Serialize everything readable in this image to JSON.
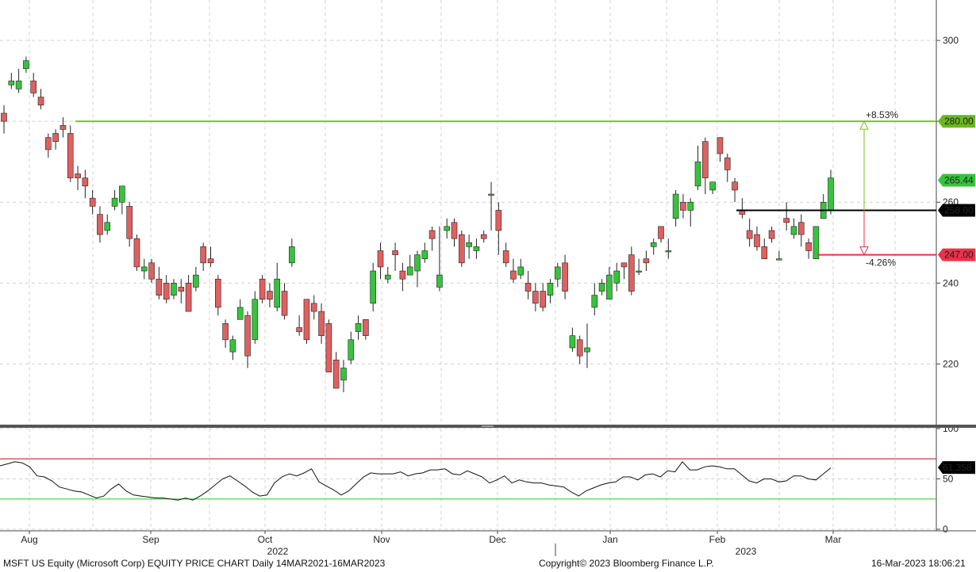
{
  "footer": {
    "left": "MSFT US Equity (Microsoft Corp) EQUITY PRICE CHART  Daily 14MAR2021-16MAR2023",
    "center": "Copyright© 2023 Bloomberg Finance L.P.",
    "right": "16-Mar-2023 18:06:21"
  },
  "chart_data": [
    {
      "type": "candlestick",
      "title": "",
      "ylim": [
        205,
        310
      ],
      "yticks": [
        220,
        240,
        260,
        280,
        300
      ],
      "x_month_labels": [
        "Aug",
        "Sep",
        "Oct",
        "Nov",
        "Dec",
        "Jan",
        "Feb",
        "Mar"
      ],
      "x_year_labels": [
        "2022",
        "2023"
      ],
      "colors": {
        "up": "#35c43b",
        "down": "#e06060",
        "level_280": "#7bc41e",
        "level_258": "#000000",
        "level_247": "#e8334a"
      },
      "horizontal_levels": [
        {
          "value": 280.0,
          "label": "280.00"
        },
        {
          "value": 258.0,
          "label": "258.00"
        },
        {
          "value": 247.0,
          "label": "247.00"
        }
      ],
      "last_price": {
        "value": 265.44,
        "label": "265.44"
      },
      "annotations": [
        {
          "text": "+8.53%",
          "from": 258.0,
          "to": 280.0
        },
        {
          "text": "-4.26%",
          "from": 258.0,
          "to": 247.0
        }
      ],
      "series": [
        {
          "values": [
            [
              282,
              280,
              284,
              277
            ],
            [
              289,
              290,
              292,
              288
            ],
            [
              288,
              290,
              293,
              287
            ],
            [
              293,
              295,
              296,
              292
            ],
            [
              290,
              287,
              292,
              286
            ],
            [
              286,
              284,
              288,
              283
            ],
            [
              276,
              273,
              277,
              271
            ],
            [
              277,
              275,
              278,
              273
            ],
            [
              279,
              278,
              281,
              276
            ],
            [
              277,
              266,
              279,
              265
            ],
            [
              267,
              266,
              269,
              263
            ],
            [
              266,
              264,
              268,
              261
            ],
            [
              261,
              259,
              263,
              257
            ],
            [
              257,
              252,
              259,
              250
            ],
            [
              253,
              255,
              257,
              252
            ],
            [
              259,
              261,
              263,
              258
            ],
            [
              260,
              264,
              264,
              257
            ],
            [
              259,
              251,
              260,
              249
            ],
            [
              251,
              244,
              252,
              243
            ],
            [
              243,
              244,
              246,
              241
            ],
            [
              245,
              241,
              246,
              240
            ],
            [
              241,
              237,
              244,
              236
            ],
            [
              240,
              236,
              242,
              235
            ],
            [
              237,
              240,
              241,
              236
            ],
            [
              239,
              238,
              241,
              235
            ],
            [
              240,
              233,
              242,
              233
            ],
            [
              239,
              242,
              244,
              238
            ],
            [
              249,
              245,
              250,
              243
            ],
            [
              246,
              245,
              249,
              244
            ],
            [
              241,
              234,
              242,
              232
            ],
            [
              230,
              226,
              231,
              224
            ],
            [
              223,
              226,
              227,
              221
            ],
            [
              231,
              234,
              236,
              232
            ],
            [
              232,
              222,
              233,
              219
            ],
            [
              226,
              236,
              238,
              225
            ],
            [
              241,
              236,
              242,
              235
            ],
            [
              238,
              236,
              240,
              234
            ],
            [
              234,
              241,
              245,
              233
            ],
            [
              238,
              232,
              240,
              231
            ],
            [
              245,
              249,
              251,
              244
            ],
            [
              229,
              228,
              232,
              227
            ],
            [
              236,
              226,
              236,
              225
            ],
            [
              235,
              233,
              237,
              231
            ],
            [
              233,
              227,
              235,
              225
            ],
            [
              230,
              218,
              231,
              218
            ],
            [
              221,
              214,
              223,
              214
            ],
            [
              216,
              219,
              221,
              213
            ],
            [
              221,
              226,
              228,
              220
            ],
            [
              228,
              230,
              232,
              226
            ],
            [
              231,
              227,
              231,
              226
            ],
            [
              235,
              243,
              245,
              233
            ],
            [
              248,
              244,
              250,
              241
            ],
            [
              241,
              242,
              244,
              240
            ],
            [
              248,
              247,
              250,
              243
            ],
            [
              243,
              241,
              245,
              238
            ],
            [
              242,
              244,
              247,
              242
            ],
            [
              243,
              247,
              248,
              239
            ],
            [
              246,
              248,
              250,
              245
            ],
            [
              253,
              251,
              254,
              248
            ],
            [
              239,
              242,
              254,
              238
            ],
            [
              253,
              254,
              256,
              251
            ],
            [
              255,
              251,
              256,
              249
            ],
            [
              252,
              245,
              253,
              244
            ],
            [
              249,
              250,
              252,
              246
            ],
            [
              248,
              249,
              251,
              246
            ],
            [
              252,
              251,
              253,
              250
            ],
            [
              262,
              262,
              265,
              253
            ],
            [
              258,
              253,
              260,
              247
            ],
            [
              248,
              245,
              250,
              244
            ],
            [
              243,
              241,
              246,
              240
            ],
            [
              242,
              244,
              246,
              241
            ],
            [
              240,
              238,
              243,
              236
            ],
            [
              238,
              235,
              240,
              233
            ],
            [
              238,
              234,
              240,
              233
            ],
            [
              237,
              240,
              241,
              235
            ],
            [
              241,
              244,
              245,
              239
            ],
            [
              245,
              238,
              247,
              236
            ],
            [
              224,
              227,
              229,
              223
            ],
            [
              226,
              222,
              227,
              220
            ],
            [
              223,
              224,
              230,
              219
            ],
            [
              234,
              237,
              240,
              232
            ],
            [
              238,
              240,
              241,
              237
            ],
            [
              236,
              242,
              244,
              236
            ],
            [
              240,
              243,
              245,
              238
            ],
            [
              245,
              244,
              245,
              241
            ],
            [
              247,
              238,
              249,
              237
            ],
            [
              243,
              243,
              246,
              242
            ],
            [
              246,
              245,
              248,
              243
            ],
            [
              249,
              250,
              251,
              247
            ],
            [
              254,
              251,
              254,
              250
            ],
            [
              248,
              248,
              251,
              246
            ],
            [
              256,
              262,
              263,
              254
            ],
            [
              260,
              258,
              262,
              256
            ],
            [
              258,
              260,
              261,
              254
            ],
            [
              264,
              270,
              274,
              263
            ],
            [
              275,
              266,
              276,
              262
            ],
            [
              263,
              265,
              265,
              262
            ],
            [
              276,
              272,
              275,
              270
            ],
            [
              271,
              268,
              272,
              265
            ],
            [
              265,
              263,
              266,
              260
            ],
            [
              258,
              257,
              261,
              256
            ],
            [
              253,
              251,
              256,
              249
            ],
            [
              252,
              249,
              254,
              248
            ],
            [
              249,
              246,
              251,
              246
            ],
            [
              253,
              251,
              254,
              250
            ],
            [
              246,
              246,
              248,
              246
            ],
            [
              256,
              255,
              260,
              253
            ],
            [
              252,
              254,
              256,
              251
            ],
            [
              255,
              252,
              257,
              249
            ],
            [
              250,
              248,
              251,
              246
            ],
            [
              246,
              254,
              254,
              248
            ],
            [
              256,
              260,
              262,
              256
            ],
            [
              258,
              266,
              268,
              257
            ]
          ]
        }
      ]
    },
    {
      "type": "line",
      "title": "",
      "ylim": [
        0,
        100
      ],
      "yticks": [
        0,
        50,
        100
      ],
      "horizontal_levels": [
        {
          "value": 70,
          "color": "#cc0000"
        },
        {
          "value": 30,
          "color": "#22cc22"
        }
      ],
      "last_value": {
        "value": 61.358,
        "label": "61.358"
      },
      "series": [
        {
          "values": [
            63,
            65,
            67,
            66,
            62,
            53,
            52,
            48,
            42,
            40,
            38,
            37,
            34,
            31,
            33,
            40,
            45,
            38,
            34,
            33,
            32,
            31,
            31,
            30,
            29,
            31,
            29,
            33,
            38,
            44,
            50,
            53,
            48,
            43,
            37,
            33,
            34,
            46,
            52,
            55,
            53,
            56,
            60,
            47,
            43,
            39,
            34,
            38,
            45,
            52,
            56,
            55,
            55,
            55,
            57,
            53,
            55,
            56,
            59,
            59,
            60,
            55,
            54,
            58,
            55,
            52,
            46,
            49,
            53,
            46,
            49,
            47,
            46,
            46,
            44,
            43,
            42,
            37,
            33,
            38,
            41,
            44,
            46,
            47,
            52,
            52,
            49,
            54,
            55,
            52,
            58,
            57,
            67,
            59,
            59,
            62,
            63,
            62,
            60,
            60,
            54,
            48,
            46,
            50,
            50,
            47,
            48,
            53,
            53,
            50,
            49,
            55,
            61
          ]
        }
      ]
    }
  ]
}
